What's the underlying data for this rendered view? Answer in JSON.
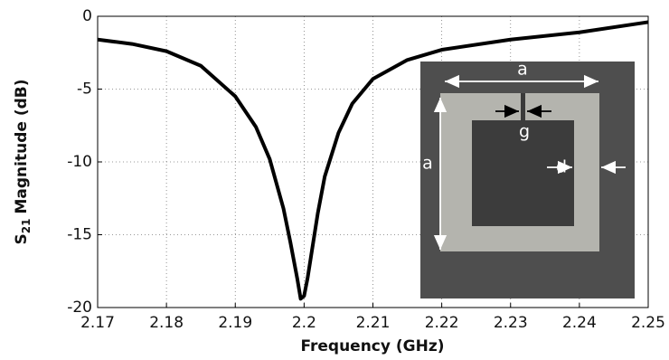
{
  "chart_data": {
    "type": "line",
    "xlabel": "Frequency (GHz)",
    "ylabel": {
      "symbol": "S",
      "subscript": "21",
      "text": "Magnitude (dB)"
    },
    "x": [
      2.17,
      2.175,
      2.18,
      2.185,
      2.19,
      2.193,
      2.195,
      2.197,
      2.198,
      2.199,
      2.1995,
      2.2,
      2.2005,
      2.201,
      2.202,
      2.203,
      2.205,
      2.207,
      2.21,
      2.215,
      2.22,
      2.23,
      2.24,
      2.25
    ],
    "values": [
      -1.6,
      -1.9,
      -2.4,
      -3.4,
      -5.5,
      -7.6,
      -9.8,
      -13.2,
      -15.5,
      -18,
      -19.4,
      -19.2,
      -18,
      -16.5,
      -13.5,
      -11,
      -8,
      -6,
      -4.3,
      -3,
      -2.3,
      -1.6,
      -1.1,
      -0.4
    ],
    "color": "#000000",
    "xlim": [
      2.17,
      2.25
    ],
    "xticks": [
      2.17,
      2.18,
      2.19,
      2.2,
      2.21,
      2.22,
      2.23,
      2.24,
      2.25
    ],
    "ylim": [
      -20,
      0
    ],
    "yticks": [
      -20,
      -15,
      -10,
      -5,
      0
    ],
    "grid": true,
    "annotations": [
      "a",
      "a",
      "g",
      "d"
    ]
  }
}
